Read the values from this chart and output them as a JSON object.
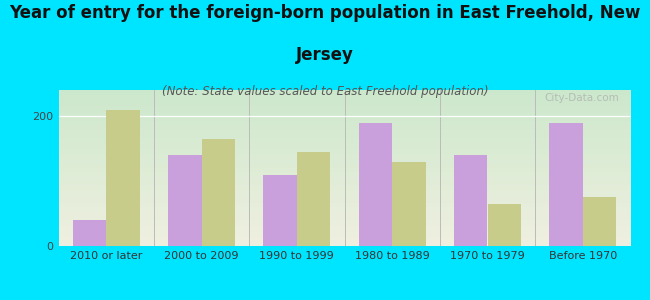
{
  "title_line1": "Year of entry for the foreign-born population in East Freehold, New",
  "title_line2": "Jersey",
  "subtitle": "(Note: State values scaled to East Freehold population)",
  "categories": [
    "2010 or later",
    "2000 to 2009",
    "1990 to 1999",
    "1980 to 1989",
    "1970 to 1979",
    "Before 1970"
  ],
  "east_freehold": [
    40,
    140,
    110,
    190,
    140,
    190
  ],
  "new_jersey": [
    210,
    165,
    145,
    130,
    65,
    75
  ],
  "ef_color": "#c9a0dc",
  "nj_color": "#c8cc8a",
  "bg_outer": "#00e5ff",
  "ylim": [
    0,
    240
  ],
  "yticks": [
    0,
    200
  ],
  "bar_width": 0.35,
  "title_fontsize": 12,
  "subtitle_fontsize": 8.5,
  "tick_fontsize": 8,
  "legend_fontsize": 9,
  "watermark": "City-Data.com"
}
